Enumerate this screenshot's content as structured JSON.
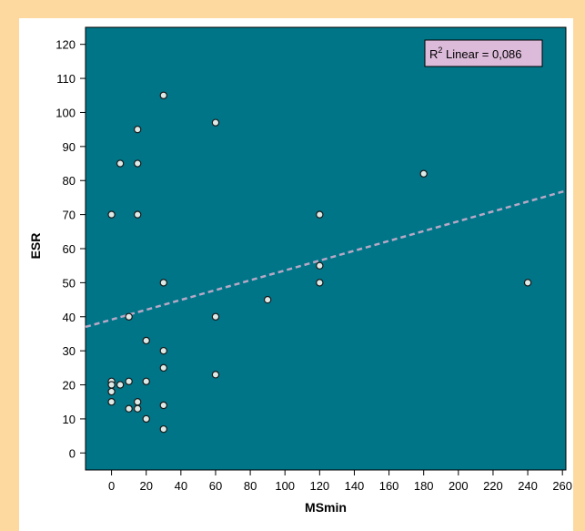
{
  "chart_data": {
    "type": "scatter",
    "title": "",
    "xlabel": "MSmin",
    "ylabel": "ESR",
    "xlim": [
      -15,
      262
    ],
    "ylim": [
      -5,
      125
    ],
    "x_ticks": [
      0,
      20,
      40,
      60,
      80,
      100,
      120,
      140,
      160,
      180,
      200,
      220,
      240,
      260
    ],
    "y_ticks": [
      0,
      10,
      20,
      30,
      40,
      50,
      60,
      70,
      80,
      90,
      100,
      110,
      120
    ],
    "grid": false,
    "points": [
      {
        "x": 0,
        "y": 70
      },
      {
        "x": 0,
        "y": 21
      },
      {
        "x": 0,
        "y": 20
      },
      {
        "x": 0,
        "y": 18
      },
      {
        "x": 0,
        "y": 15
      },
      {
        "x": 5,
        "y": 85
      },
      {
        "x": 5,
        "y": 20
      },
      {
        "x": 10,
        "y": 40
      },
      {
        "x": 10,
        "y": 21
      },
      {
        "x": 10,
        "y": 13
      },
      {
        "x": 15,
        "y": 95
      },
      {
        "x": 15,
        "y": 85
      },
      {
        "x": 15,
        "y": 70
      },
      {
        "x": 15,
        "y": 15
      },
      {
        "x": 15,
        "y": 13
      },
      {
        "x": 20,
        "y": 33
      },
      {
        "x": 20,
        "y": 21
      },
      {
        "x": 20,
        "y": 10
      },
      {
        "x": 30,
        "y": 105
      },
      {
        "x": 30,
        "y": 50
      },
      {
        "x": 30,
        "y": 30
      },
      {
        "x": 30,
        "y": 25
      },
      {
        "x": 30,
        "y": 14
      },
      {
        "x": 30,
        "y": 7
      },
      {
        "x": 60,
        "y": 97
      },
      {
        "x": 60,
        "y": 40
      },
      {
        "x": 60,
        "y": 23
      },
      {
        "x": 90,
        "y": 45
      },
      {
        "x": 120,
        "y": 70
      },
      {
        "x": 120,
        "y": 55
      },
      {
        "x": 120,
        "y": 50
      },
      {
        "x": 180,
        "y": 82
      },
      {
        "x": 240,
        "y": 50
      }
    ],
    "fit_line": {
      "type": "linear",
      "x": [
        -15,
        262
      ],
      "y": [
        37,
        77
      ]
    },
    "annotation": {
      "prefix": "R",
      "superscript": "2",
      "suffix": " Linear = 0,086"
    },
    "colors": {
      "frame": "#fdd9a0",
      "plot_bg": "#007588",
      "point_fill": "#dde9e6",
      "fit_line": "#b7a8c6",
      "annotation_bg": "#dcbad9"
    }
  }
}
